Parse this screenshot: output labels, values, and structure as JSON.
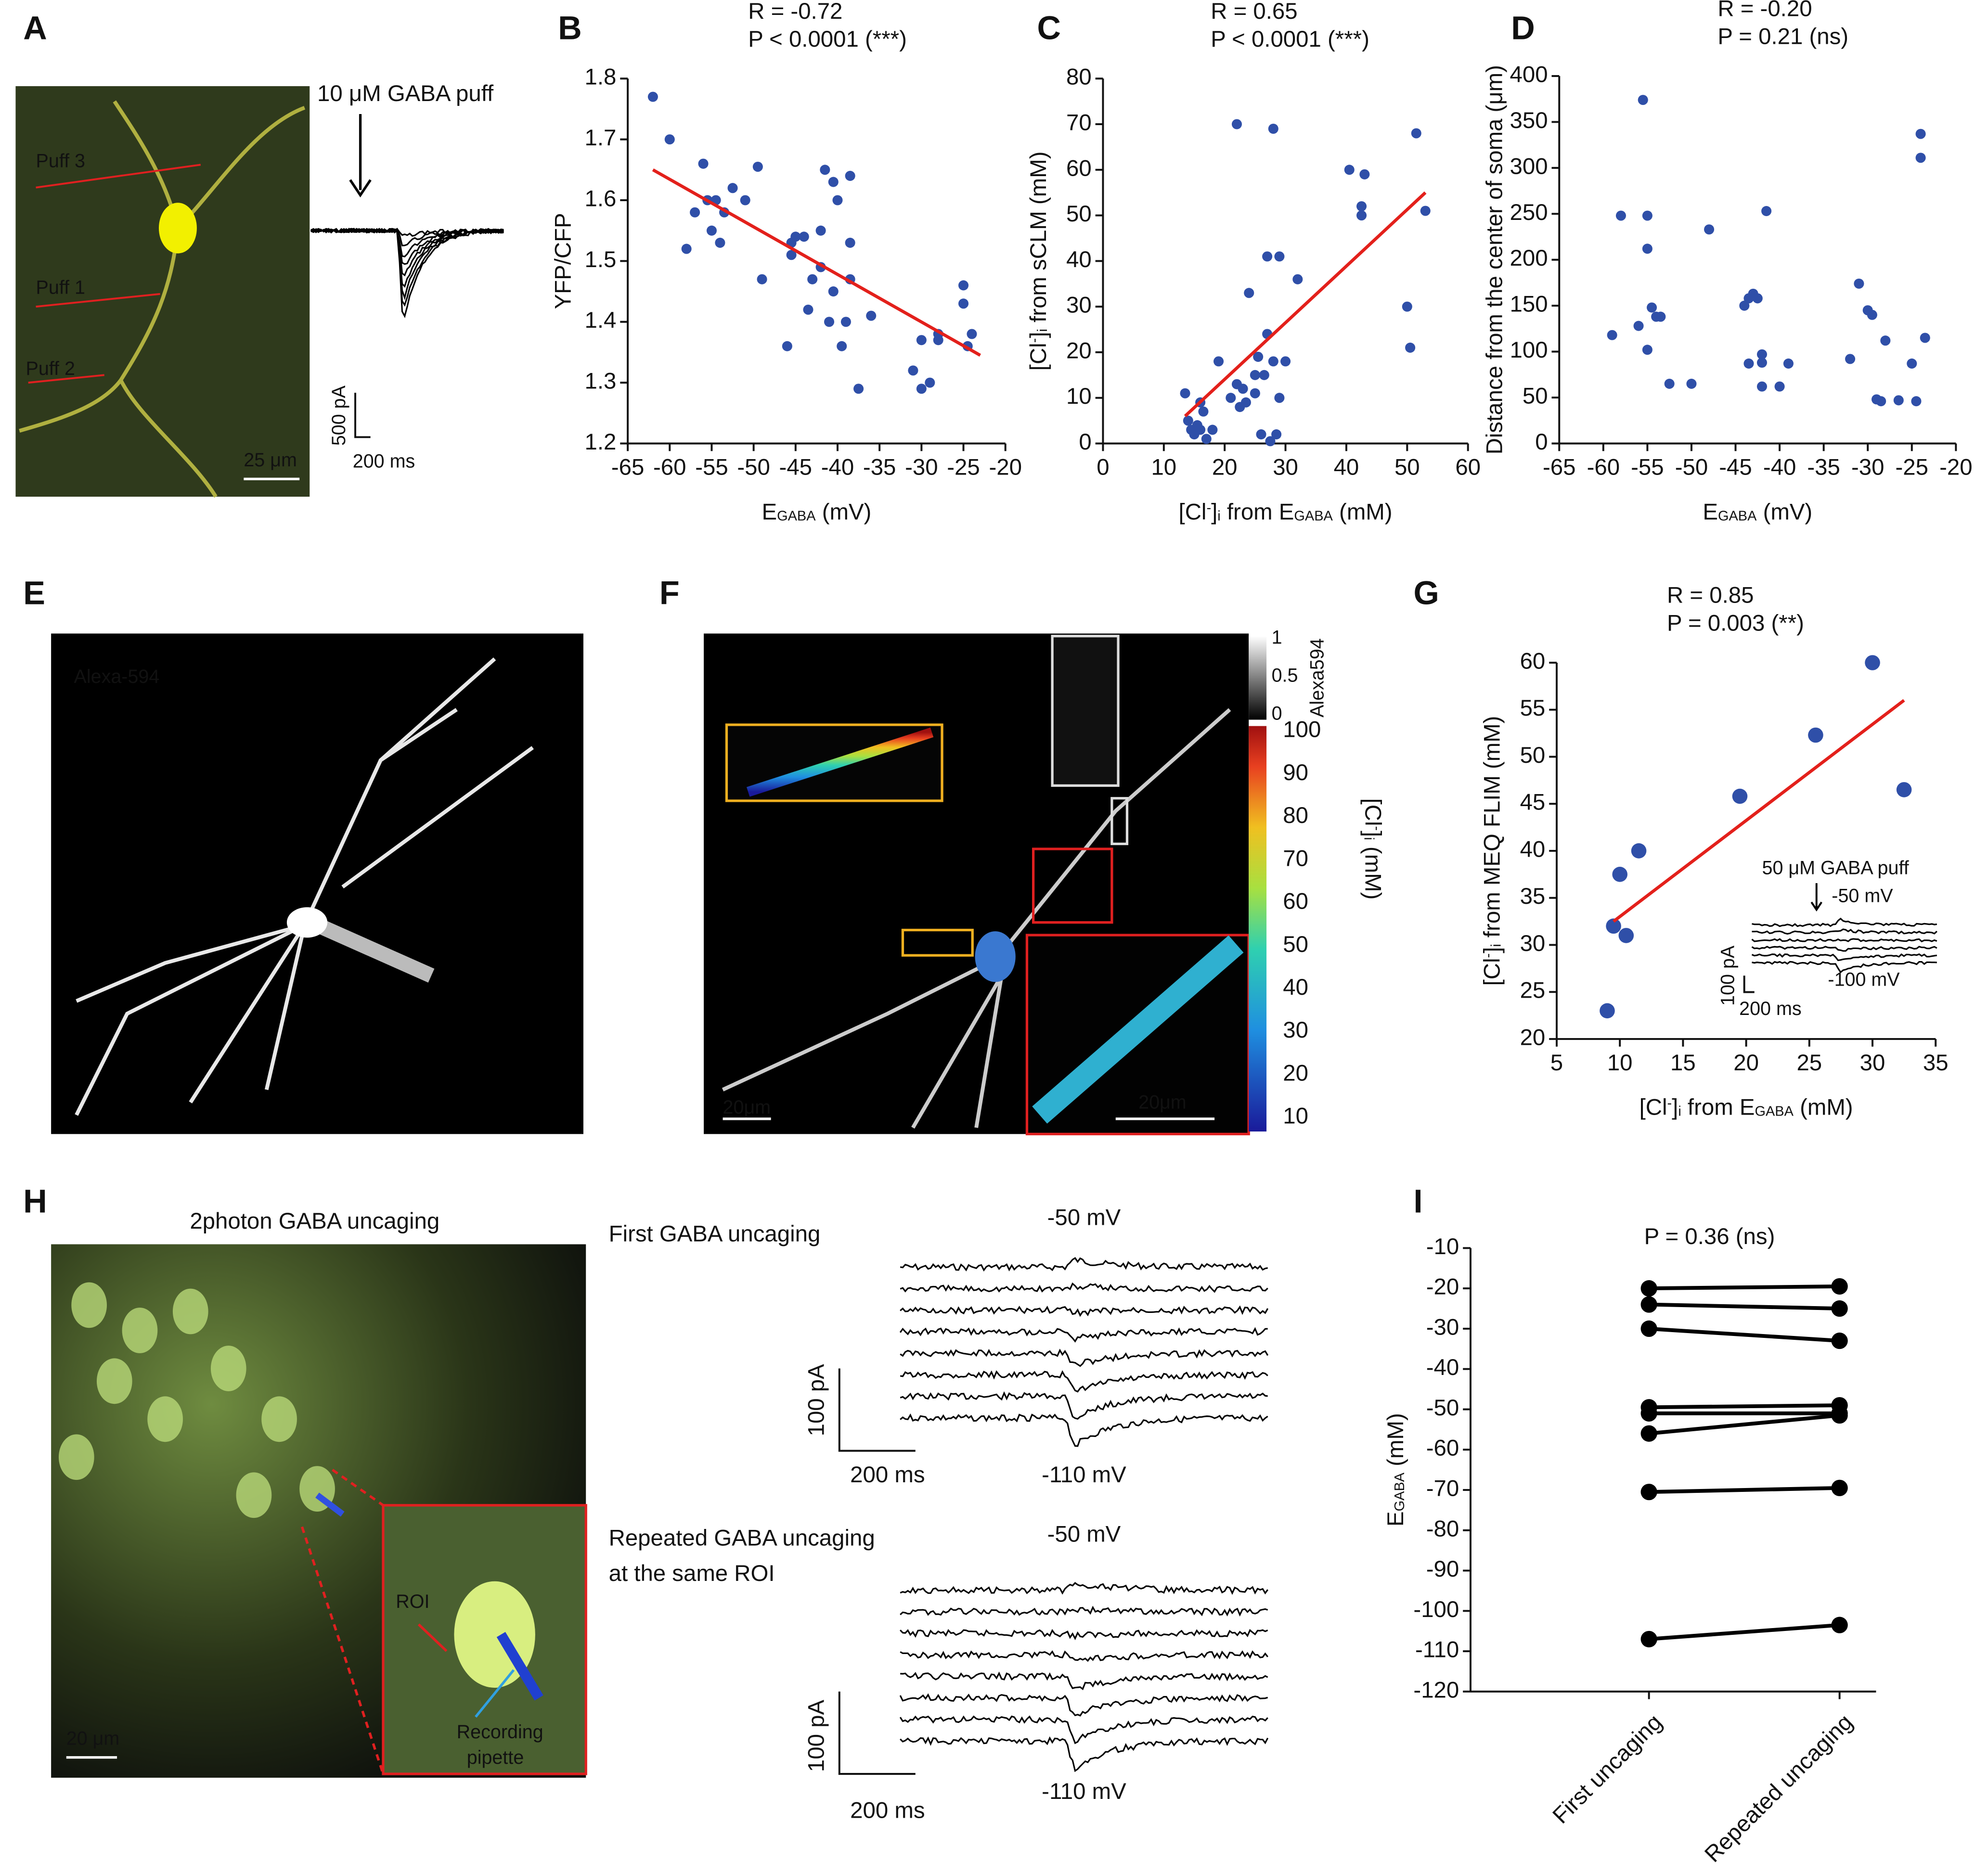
{
  "panel_letters": [
    "A",
    "B",
    "C",
    "D",
    "E",
    "F",
    "G",
    "H",
    "I"
  ],
  "panels": {
    "A": {
      "image_labels": [
        "Puff 3",
        "Puff 1",
        "Puff 2"
      ],
      "scale_bar": "25 μm",
      "stimulus": "10 μM GABA puff",
      "current_scale": "500 pA",
      "time_scale": "200 ms"
    },
    "E": {
      "image_label": "Alexa-594"
    },
    "F": {
      "gray_bar_label": "Alexa594",
      "gray_ticks": [
        1,
        0.5,
        0
      ],
      "color_ticks": [
        100,
        90,
        80,
        70,
        60,
        50,
        40,
        30,
        20,
        10
      ],
      "color_bar_label": [
        "[Cl",
        {
          "text": "-",
          "script": "sup"
        },
        "]",
        {
          "text": "i",
          "script": "sub"
        },
        "  (mM)"
      ],
      "scale_bars": [
        "20μm",
        "20μm"
      ]
    },
    "H": {
      "title": "2photon GABA uncaging",
      "roi": "ROI",
      "pipette": [
        "Recording",
        "pipette"
      ],
      "scale_bar": "20 μm",
      "traces": [
        {
          "title": [
            "First GABA uncaging"
          ],
          "top": "-50 mV",
          "bottom": "-110 mV",
          "current_scale": "100 pA",
          "time_scale": "200 ms"
        },
        {
          "title": [
            "Repeated GABA uncaging",
            "at the same ROI"
          ],
          "top": "-50 mV",
          "bottom": "-110 mV",
          "current_scale": "100 pA",
          "time_scale": "200 ms"
        }
      ]
    }
  },
  "chart_data": [
    {
      "type": "scatter",
      "stats": [
        "R = -0.72",
        "P < 0.0001 (***)"
      ],
      "color": "#2f4fa8",
      "fit_color": "#e3201b",
      "xlabel": [
        "E",
        {
          "text": "GABA",
          "script": "sub"
        },
        " (mV)"
      ],
      "ylabel": [
        "YFP/CFP"
      ],
      "xlim": [
        -65,
        -20
      ],
      "ylim": [
        1.2,
        1.8
      ],
      "xticks": [
        -65,
        -60,
        -55,
        -50,
        -45,
        -40,
        -35,
        -30,
        -25,
        -20
      ],
      "yticks": [
        1.2,
        1.3,
        1.4,
        1.5,
        1.6,
        1.7,
        1.8
      ],
      "x": [
        -62,
        -60,
        -58,
        -57,
        -56,
        -55.5,
        -55,
        -54.5,
        -54,
        -53.5,
        -52.5,
        -51,
        -49.5,
        -49,
        -46,
        -45.5,
        -45.5,
        -45,
        -44,
        -43.5,
        -43,
        -42,
        -42,
        -41.5,
        -41,
        -40.5,
        -40.5,
        -40,
        -39.5,
        -39,
        -38.5,
        -38.5,
        -38.5,
        -37.5,
        -36,
        -31,
        -30,
        -30,
        -29,
        -28,
        -28,
        -25,
        -25,
        -24.5,
        -24
      ],
      "y": [
        1.77,
        1.7,
        1.52,
        1.58,
        1.66,
        1.6,
        1.55,
        1.6,
        1.53,
        1.58,
        1.62,
        1.6,
        1.655,
        1.47,
        1.36,
        1.53,
        1.51,
        1.54,
        1.54,
        1.42,
        1.47,
        1.49,
        1.55,
        1.65,
        1.4,
        1.63,
        1.45,
        1.6,
        1.36,
        1.4,
        1.53,
        1.64,
        1.47,
        1.29,
        1.41,
        1.32,
        1.29,
        1.37,
        1.3,
        1.38,
        1.37,
        1.46,
        1.43,
        1.36,
        1.38
      ],
      "fit": {
        "x": [
          -62,
          -23
        ],
        "y": [
          1.65,
          1.345
        ]
      }
    },
    {
      "type": "scatter",
      "stats": [
        "R = 0.65",
        "P < 0.0001 (***)"
      ],
      "color": "#2f4fa8",
      "fit_color": "#e3201b",
      "xlabel": [
        "[Cl",
        {
          "text": "-",
          "script": "sup"
        },
        "]",
        {
          "text": "i",
          "script": "sub"
        },
        " from E",
        {
          "text": "GABA",
          "script": "sub"
        },
        " (mM)"
      ],
      "ylabel": [
        "[Cl",
        {
          "text": "-",
          "script": "sup"
        },
        "]",
        {
          "text": "i",
          "script": "sub"
        },
        " from sCLM  (mM)"
      ],
      "xlim": [
        0,
        60
      ],
      "ylim": [
        0,
        80
      ],
      "xticks": [
        0,
        10,
        20,
        30,
        40,
        50,
        60
      ],
      "yticks": [
        0,
        10,
        20,
        30,
        40,
        50,
        60,
        70,
        80
      ],
      "x": [
        13.5,
        14,
        14.5,
        15,
        15.5,
        16,
        16,
        16.5,
        17,
        18,
        19,
        21,
        22,
        22,
        22.5,
        23,
        23.5,
        24,
        25,
        25,
        25.5,
        26,
        26.5,
        27,
        27,
        27.5,
        28,
        28,
        28.5,
        29,
        29,
        30,
        32,
        40.5,
        42.5,
        42.5,
        43,
        50,
        50.5,
        51.5,
        53
      ],
      "y": [
        11,
        5,
        3,
        2,
        4,
        9,
        3,
        7,
        1,
        3,
        18,
        10,
        70,
        13,
        8,
        12,
        9,
        33,
        11,
        15,
        19,
        2,
        15,
        41,
        24,
        0.5,
        69,
        18,
        2,
        10,
        41,
        18,
        36,
        60,
        52,
        50,
        59,
        30,
        21,
        68,
        51
      ],
      "fit": {
        "x": [
          13.5,
          53
        ],
        "y": [
          6,
          55
        ]
      }
    },
    {
      "type": "scatter",
      "stats": [
        "R = -0.20",
        "P = 0.21 (ns)"
      ],
      "color": "#2f4fa8",
      "xlabel": [
        "E",
        {
          "text": "GABA",
          "script": "sub"
        },
        " (mV)"
      ],
      "ylabel": [
        "Distance from the center of soma (μm)"
      ],
      "xlim": [
        -65,
        -20
      ],
      "ylim": [
        0,
        400
      ],
      "xticks": [
        -65,
        -60,
        -55,
        -50,
        -45,
        -40,
        -35,
        -30,
        -25,
        -20
      ],
      "yticks": [
        0,
        50,
        100,
        150,
        200,
        250,
        300,
        350,
        400
      ],
      "x": [
        -59,
        -58,
        -56,
        -55.5,
        -55,
        -55,
        -55,
        -54.5,
        -54,
        -53.5,
        -52.5,
        -50,
        -48,
        -44,
        -43.5,
        -43.5,
        -43,
        -42.5,
        -42,
        -42,
        -42,
        -41.5,
        -40,
        -39,
        -32,
        -31,
        -30,
        -29.5,
        -29,
        -28.5,
        -28,
        -26.5,
        -25,
        -24.5,
        -24,
        -24,
        -23.5
      ],
      "y": [
        118,
        248,
        128,
        374,
        248,
        212,
        102,
        148,
        138,
        138,
        65,
        65,
        233,
        150,
        158,
        87,
        163,
        158,
        88,
        97,
        62,
        253,
        62,
        87,
        92,
        174,
        145,
        140,
        48,
        46,
        112,
        47,
        87,
        46,
        311,
        337,
        115
      ]
    },
    {
      "type": "scatter",
      "stats": [
        "R = 0.85",
        "P = 0.003 (**)"
      ],
      "color": "#2f4fa8",
      "fit_color": "#e3201b",
      "big": true,
      "xlabel": [
        "[Cl",
        {
          "text": "-",
          "script": "sup"
        },
        "]",
        {
          "text": "i",
          "script": "sub"
        },
        " from E",
        {
          "text": "GABA",
          "script": "sub"
        },
        " (mM)"
      ],
      "ylabel": [
        "[Cl",
        {
          "text": "-",
          "script": "sup"
        },
        "]",
        {
          "text": "i",
          "script": "sub"
        },
        " from MEQ FLIM (mM)"
      ],
      "xlim": [
        5,
        35
      ],
      "ylim": [
        20,
        60
      ],
      "xticks": [
        5,
        10,
        15,
        20,
        25,
        30,
        35
      ],
      "yticks": [
        20,
        25,
        30,
        35,
        40,
        45,
        50,
        55,
        60
      ],
      "x": [
        9,
        9.5,
        10,
        10.5,
        11.5,
        19.5,
        25.5,
        30,
        32.5
      ],
      "y": [
        23,
        32,
        37.5,
        31,
        40,
        45.8,
        52.3,
        60,
        46.5
      ],
      "fit": {
        "x": [
          9.5,
          32.5
        ],
        "y": [
          32.5,
          56
        ]
      },
      "inset": {
        "stimulus": "50 μM GABA puff",
        "top": "-50 mV",
        "bottom": "-100 mV",
        "current_scale": "100 pA",
        "time_scale": "200 ms"
      }
    },
    {
      "type": "line",
      "stats": [
        "P = 0.36 (ns)"
      ],
      "color": "#000000",
      "ylabel": [
        "E",
        {
          "text": "GABA",
          "script": "sub"
        },
        " (mM)"
      ],
      "categories": [
        "First uncaging",
        "Repeated uncaging"
      ],
      "ylim": [
        -120,
        -10
      ],
      "yticks": [
        -120,
        -110,
        -100,
        -90,
        -80,
        -70,
        -60,
        -50,
        -40,
        -30,
        -20,
        -10
      ],
      "series": [
        {
          "values": [
            -20,
            -19.5
          ]
        },
        {
          "values": [
            -24,
            -25
          ]
        },
        {
          "values": [
            -30,
            -33
          ]
        },
        {
          "values": [
            -49.5,
            -49
          ]
        },
        {
          "values": [
            -51,
            -51
          ]
        },
        {
          "values": [
            -56,
            -51.5
          ]
        },
        {
          "values": [
            -70.5,
            -69.5
          ]
        },
        {
          "values": [
            -107,
            -103.5
          ]
        }
      ]
    }
  ]
}
